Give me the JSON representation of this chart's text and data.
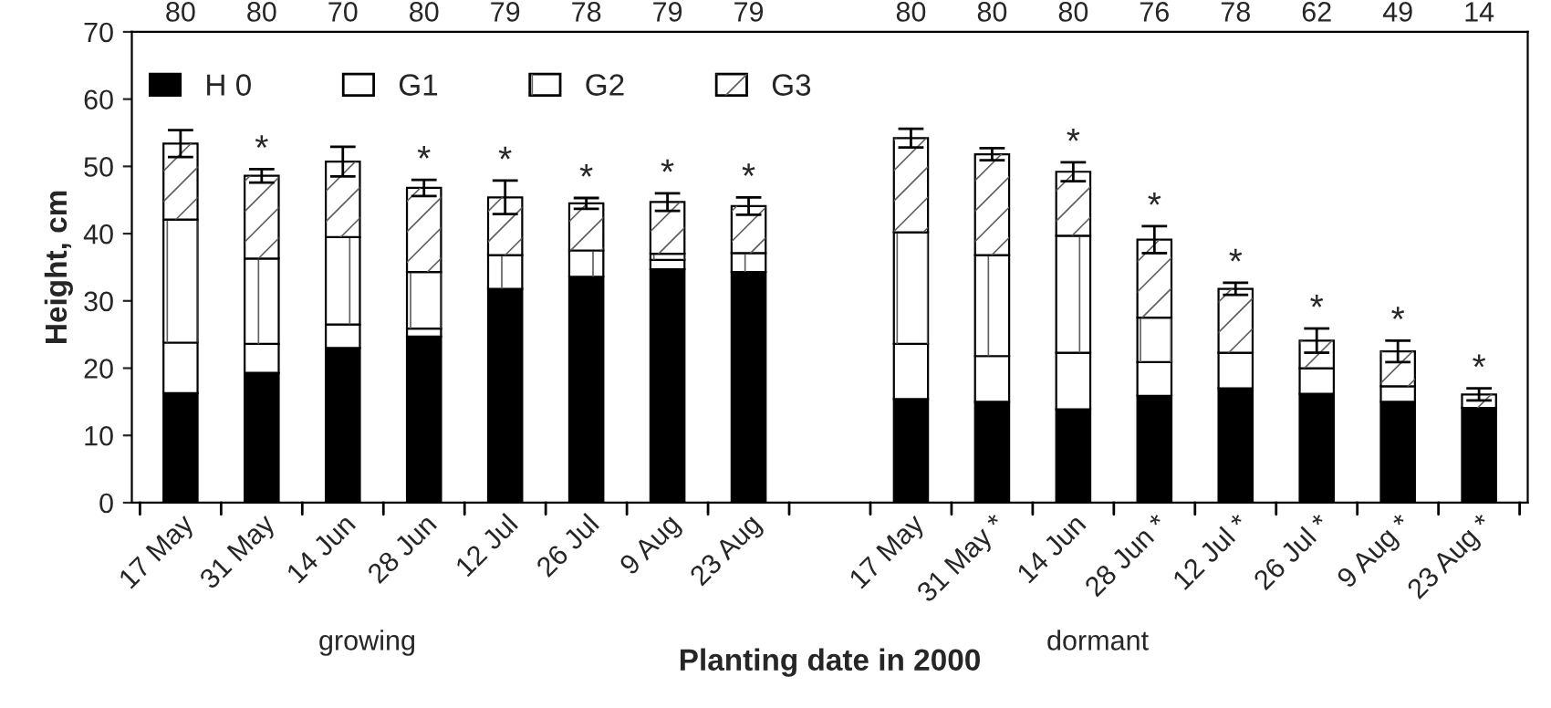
{
  "chart_data": {
    "type": "bar",
    "stacked": true,
    "xlabel": "Planting date in 2000",
    "ylabel": "Height, cm",
    "categories": [
      "17 May",
      "31 May",
      "14 Jun",
      "28 Jun",
      "12 Jul",
      "26 Jul",
      "9 Aug",
      "23 Aug",
      null,
      "17 May",
      "31 May *",
      "14 Jun",
      "28 Jun *",
      "12 Jul *",
      "26 Jul *",
      "9 Aug *",
      "23 Aug *"
    ],
    "series": [
      {
        "name": "H 0",
        "color": "#000000",
        "values": [
          16.3,
          19.3,
          23.0,
          24.7,
          31.8,
          33.6,
          34.7,
          34.3,
          null,
          15.4,
          15.0,
          13.9,
          15.9,
          17.0,
          16.2,
          15.0,
          14.1
        ]
      },
      {
        "name": "G1",
        "color": "#ffffff",
        "values": [
          7.5,
          4.3,
          3.5,
          1.2,
          0,
          0,
          1.4,
          0,
          null,
          8.2,
          6.8,
          8.4,
          5.0,
          5.3,
          3.8,
          2.3,
          0
        ]
      },
      {
        "name": "G2",
        "color": "#ffffff",
        "values": [
          18.3,
          12.7,
          13.0,
          8.4,
          5.0,
          3.9,
          0.9,
          2.8,
          null,
          16.6,
          15.0,
          17.4,
          6.6,
          0,
          0,
          0,
          0
        ]
      },
      {
        "name": "G3",
        "color": "#ffffff",
        "values": [
          11.3,
          12.3,
          11.2,
          12.5,
          8.6,
          7.0,
          7.7,
          7.0,
          null,
          14.0,
          15.0,
          9.5,
          11.6,
          9.5,
          4.1,
          5.2,
          2.0
        ],
        "errors": [
          2.0,
          1.0,
          2.2,
          1.2,
          2.5,
          0.8,
          1.3,
          1.3,
          null,
          1.4,
          0.9,
          1.4,
          2.0,
          0.9,
          1.8,
          1.6,
          0.9
        ],
        "value_labels": [
          null,
          "*",
          null,
          "*",
          "*",
          "*",
          "*",
          "*",
          null,
          null,
          null,
          "*",
          "*",
          "*",
          "*",
          "*",
          "*"
        ]
      }
    ],
    "ylim": [
      0,
      70
    ],
    "yticks": [
      0,
      10,
      20,
      30,
      40,
      50,
      60,
      70
    ],
    "legend": "top",
    "annotations": [
      "growing",
      "dormant",
      "80",
      "80",
      "70",
      "80",
      "79",
      "78",
      "79",
      "79",
      "80",
      "80",
      "80",
      "76",
      "78",
      "62",
      "49",
      "14"
    ]
  }
}
